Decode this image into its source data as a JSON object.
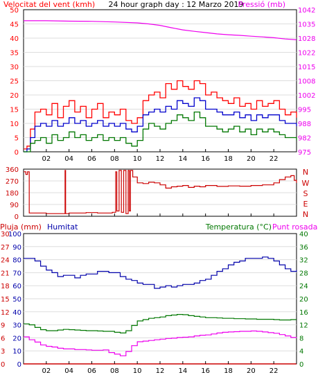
{
  "page": {
    "header": {
      "left": "Velocitat del vent (kmh)",
      "center": "24 hour graph day : 12 Marzo 2019",
      "right": "Pressió (mb)"
    },
    "direction_letters": [
      "N",
      "W",
      "S",
      "E",
      "N"
    ],
    "bottom_header": {
      "rain": "Pluja (mm)",
      "humidity": "Humitat",
      "temperature": "Temperatura (°C)",
      "dewpoint": "Punt rosada"
    }
  },
  "colors": {
    "frame": "#000000",
    "wind_gust": "#ff0000",
    "wind_avg": "#0000cc",
    "wind_low": "#007700",
    "pressure": "#ee00ee",
    "direction": "#cc0000",
    "humidity": "#0000aa",
    "temperature": "#007700",
    "dewpoint": "#ee00ee",
    "rain": "#cc0000"
  },
  "chart_data": [
    {
      "type": "line",
      "name": "wind_pressure",
      "x_range": [
        0,
        24
      ],
      "x_ticks": [
        "02",
        "04",
        "06",
        "08",
        "10",
        "12",
        "14",
        "16",
        "18",
        "20",
        "22",
        ""
      ],
      "y_left": {
        "label": "Velocitat del vent (kmh)",
        "range": [
          0,
          50
        ],
        "ticks": [
          "0",
          "5",
          "10",
          "15",
          "20",
          "25",
          "30",
          "35",
          "40",
          "45",
          "50"
        ]
      },
      "y_right": {
        "label": "Pressió (mb)",
        "range": [
          975,
          1042
        ],
        "ticks": [
          "975",
          "982",
          "988",
          "995",
          "1002",
          "1008",
          "1015",
          "1022",
          "1028",
          "1035",
          "1042"
        ]
      },
      "series": [
        {
          "name": "gust",
          "axis": "left",
          "x": [
            0,
            0.3,
            0.6,
            1,
            1.5,
            2,
            2.5,
            3,
            3.5,
            4,
            4.5,
            5,
            5.5,
            6,
            6.5,
            7,
            7.5,
            8,
            8.5,
            9,
            9.5,
            10,
            10.5,
            11,
            11.5,
            12,
            12.5,
            13,
            13.5,
            14,
            14.5,
            15,
            15.5,
            16,
            16.5,
            17,
            17.5,
            18,
            18.5,
            19,
            19.5,
            20,
            20.5,
            21,
            21.5,
            22,
            22.5,
            23,
            23.5,
            24
          ],
          "y": [
            1,
            2,
            8,
            14,
            15,
            13,
            17,
            12,
            16,
            18,
            14,
            16,
            12,
            15,
            17,
            12,
            14,
            13,
            15,
            11,
            10,
            12,
            18,
            20,
            21,
            19,
            24,
            22,
            25,
            23,
            22,
            25,
            24,
            20,
            21,
            19,
            18,
            17,
            19,
            16,
            17,
            15,
            18,
            16,
            17,
            18,
            15,
            13,
            14,
            12
          ]
        },
        {
          "name": "average",
          "axis": "left",
          "x": [
            0,
            0.3,
            0.6,
            1,
            1.5,
            2,
            2.5,
            3,
            3.5,
            4,
            4.5,
            5,
            5.5,
            6,
            6.5,
            7,
            7.5,
            8,
            8.5,
            9,
            9.5,
            10,
            10.5,
            11,
            11.5,
            12,
            12.5,
            13,
            13.5,
            14,
            14.5,
            15,
            15.5,
            16,
            16.5,
            17,
            17.5,
            18,
            18.5,
            19,
            19.5,
            20,
            20.5,
            21,
            21.5,
            22,
            22.5,
            23,
            23.5,
            24
          ],
          "y": [
            0,
            1,
            5,
            9,
            10,
            9,
            11,
            9,
            10,
            12,
            10,
            11,
            9,
            10,
            11,
            9,
            10,
            9,
            10,
            8,
            7,
            9,
            13,
            14,
            15,
            14,
            16,
            15,
            18,
            17,
            16,
            19,
            18,
            15,
            15,
            14,
            13,
            13,
            14,
            12,
            13,
            11,
            13,
            12,
            13,
            13,
            11,
            10,
            10,
            9
          ]
        },
        {
          "name": "low",
          "axis": "left",
          "x": [
            0,
            0.3,
            0.6,
            1,
            1.5,
            2,
            2.5,
            3,
            3.5,
            4,
            4.5,
            5,
            5.5,
            6,
            6.5,
            7,
            7.5,
            8,
            8.5,
            9,
            9.5,
            10,
            10.5,
            11,
            11.5,
            12,
            12.5,
            13,
            13.5,
            14,
            14.5,
            15,
            15.5,
            16,
            16.5,
            17,
            17.5,
            18,
            18.5,
            19,
            19.5,
            20,
            20.5,
            21,
            21.5,
            22,
            22.5,
            23,
            23.5,
            24
          ],
          "y": [
            0,
            0,
            3,
            4,
            5,
            3,
            6,
            4,
            5,
            7,
            5,
            6,
            4,
            5,
            6,
            4,
            5,
            4,
            5,
            3,
            2,
            4,
            8,
            10,
            9,
            8,
            10,
            11,
            13,
            12,
            11,
            14,
            12,
            9,
            9,
            8,
            7,
            8,
            9,
            7,
            8,
            6,
            8,
            7,
            8,
            7,
            6,
            5,
            5,
            4
          ]
        },
        {
          "name": "pressure",
          "axis": "right",
          "x": [
            0,
            2,
            4,
            6,
            8,
            10,
            11,
            12,
            13,
            14,
            15,
            16,
            17,
            18,
            19,
            20,
            21,
            22,
            23,
            24
          ],
          "y": [
            1036.8,
            1036.8,
            1036.6,
            1036.5,
            1036.2,
            1035.8,
            1035.3,
            1034.6,
            1033.5,
            1032.5,
            1031.8,
            1031.2,
            1030.6,
            1030.2,
            1029.9,
            1029.5,
            1029.2,
            1028.8,
            1028.2,
            1027.8
          ]
        }
      ]
    },
    {
      "type": "scatter",
      "name": "wind_direction",
      "x_range": [
        0,
        24
      ],
      "y_range": [
        0,
        360
      ],
      "y_ticks": [
        "0",
        "90",
        "180",
        "270",
        "360"
      ],
      "series": [
        {
          "name": "direction",
          "x": [
            0,
            0.2,
            0.35,
            0.5,
            2,
            3.6,
            3.65,
            3.7,
            4,
            5.5,
            6.5,
            7.8,
            8.1,
            8.2,
            8.4,
            8.6,
            8.8,
            9.0,
            9.2,
            9.3,
            9.4,
            9.6,
            10,
            10.5,
            11,
            11.5,
            12,
            12.5,
            13,
            13.5,
            14,
            14.5,
            15,
            15.5,
            16,
            17,
            18,
            19,
            20,
            21,
            22,
            22.5,
            23,
            23.5,
            23.8,
            24
          ],
          "y": [
            340,
            320,
            340,
            25,
            20,
            20,
            350,
            20,
            25,
            28,
            25,
            30,
            340,
            40,
            350,
            30,
            350,
            20,
            350,
            40,
            350,
            300,
            255,
            250,
            260,
            255,
            240,
            215,
            225,
            230,
            235,
            220,
            230,
            225,
            235,
            228,
            232,
            230,
            235,
            240,
            255,
            280,
            300,
            310,
            275,
            255
          ]
        }
      ]
    },
    {
      "type": "line",
      "name": "rain_humidity_temperature",
      "x_range": [
        0,
        24
      ],
      "x_ticks": [
        "02",
        "04",
        "06",
        "08",
        "10",
        "12",
        "14",
        "16",
        "18",
        "20",
        "22",
        ""
      ],
      "y_left_outer": {
        "label": "Pluja (mm)",
        "range": [
          0,
          30
        ],
        "ticks": [
          "0",
          "3",
          "6",
          "9",
          "12",
          "15",
          "18",
          "21",
          "24",
          "27",
          "30"
        ]
      },
      "y_left_inner": {
        "label": "Humitat",
        "range": [
          0,
          100
        ],
        "ticks": [
          "0",
          "10",
          "20",
          "30",
          "40",
          "50",
          "60",
          "70",
          "80",
          "90",
          "100"
        ]
      },
      "y_right": {
        "label": "Temperatura (°C)",
        "range": [
          0,
          40
        ],
        "ticks": [
          "0",
          "4",
          "8",
          "12",
          "16",
          "20",
          "24",
          "28",
          "32",
          "36",
          "40"
        ]
      },
      "series": [
        {
          "name": "humidity",
          "axis": "left_inner",
          "x": [
            0,
            0.5,
            1,
            1.5,
            2,
            2.5,
            3,
            3.5,
            4,
            4.5,
            5,
            5.5,
            6,
            6.5,
            7,
            7.5,
            8,
            8.5,
            9,
            9.5,
            10,
            10.5,
            11,
            11.5,
            12,
            12.5,
            13,
            13.5,
            14,
            14.5,
            15,
            15.5,
            16,
            16.5,
            17,
            17.5,
            18,
            18.5,
            19,
            19.5,
            20,
            20.5,
            21,
            21.5,
            22,
            22.5,
            23,
            23.5,
            24
          ],
          "y": [
            81,
            81,
            79,
            75,
            72,
            70,
            67,
            68,
            68,
            66,
            68,
            69,
            69,
            71,
            71,
            70,
            70,
            67,
            65,
            64,
            62,
            61,
            61,
            58,
            59,
            60,
            59,
            60,
            61,
            61,
            62,
            64,
            65,
            68,
            71,
            73,
            76,
            78,
            79,
            81,
            81,
            81,
            82,
            81,
            79,
            76,
            73,
            71,
            72
          ]
        },
        {
          "name": "temperature",
          "axis": "right",
          "x": [
            0,
            0.5,
            1,
            1.5,
            2,
            2.5,
            3,
            3.5,
            4,
            4.5,
            5,
            5.5,
            6,
            6.5,
            7,
            7.5,
            8,
            8.5,
            9,
            9.5,
            10,
            10.5,
            11,
            11.5,
            12,
            12.5,
            13,
            13.5,
            14,
            14.5,
            15,
            15.5,
            16,
            16.5,
            17,
            17.5,
            18,
            18.5,
            19,
            19.5,
            20,
            20.5,
            21,
            21.5,
            22,
            22.5,
            23,
            23.5,
            24
          ],
          "y": [
            12.3,
            12.0,
            11.2,
            10.5,
            10.2,
            10.2,
            10.4,
            10.6,
            10.5,
            10.4,
            10.3,
            10.2,
            10.2,
            10.1,
            10.0,
            10.0,
            9.7,
            9.5,
            10.2,
            11.8,
            13.2,
            13.6,
            14.0,
            14.2,
            14.4,
            14.8,
            15.0,
            15.2,
            15.1,
            14.8,
            14.6,
            14.4,
            14.2,
            14.2,
            14.1,
            14.0,
            14.0,
            13.9,
            13.9,
            13.8,
            13.8,
            13.7,
            13.7,
            13.7,
            13.6,
            13.5,
            13.5,
            13.6,
            13.6
          ]
        },
        {
          "name": "dewpoint",
          "axis": "right",
          "x": [
            0,
            0.5,
            1,
            1.5,
            2,
            2.5,
            3,
            3.5,
            4,
            4.5,
            5,
            5.5,
            6,
            6.5,
            7,
            7.5,
            8,
            8.5,
            9,
            9.5,
            10,
            10.5,
            11,
            11.5,
            12,
            12.5,
            13,
            13.5,
            14,
            14.5,
            15,
            15.5,
            16,
            16.5,
            17,
            17.5,
            18,
            18.5,
            19,
            19.5,
            20,
            20.5,
            21,
            21.5,
            22,
            22.5,
            23,
            23.5,
            24
          ],
          "y": [
            8.3,
            7.4,
            6.7,
            5.8,
            5.4,
            5.2,
            4.8,
            4.6,
            4.6,
            4.4,
            4.4,
            4.3,
            4.2,
            4.2,
            4.3,
            3.5,
            3.0,
            2.5,
            3.8,
            5.6,
            6.8,
            7.0,
            7.2,
            7.4,
            7.6,
            7.8,
            7.9,
            8.1,
            8.2,
            8.3,
            8.6,
            8.8,
            8.9,
            9.2,
            9.5,
            9.7,
            9.8,
            9.9,
            10.0,
            10.0,
            10.1,
            10.0,
            9.8,
            9.6,
            9.4,
            9.0,
            8.6,
            8.1,
            8.2
          ]
        },
        {
          "name": "rain",
          "axis": "left_outer",
          "x": [
            0,
            24
          ],
          "y": [
            0,
            0
          ]
        }
      ]
    }
  ]
}
